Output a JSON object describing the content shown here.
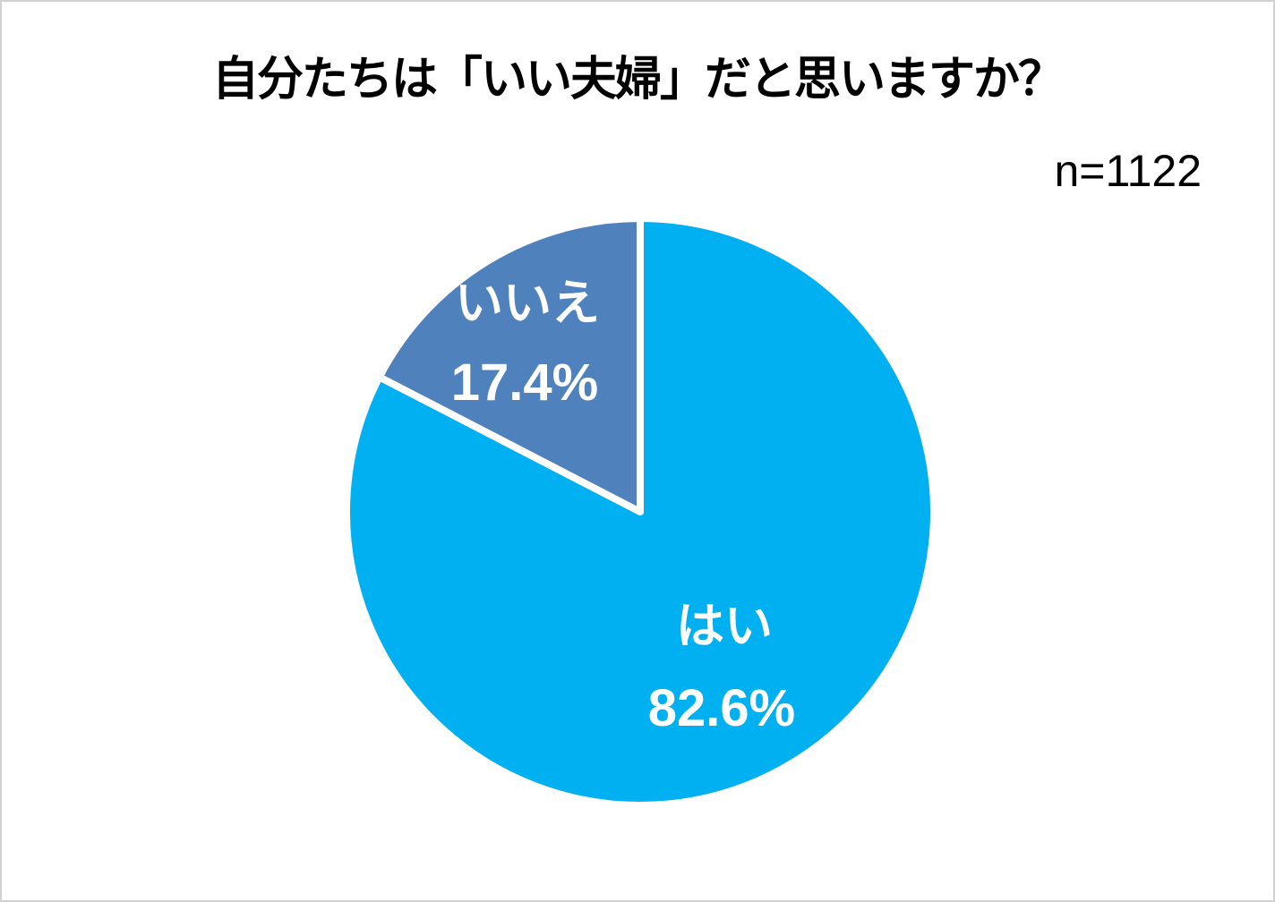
{
  "chart_data": {
    "type": "pie",
    "title": "自分たちは「いい夫婦」だと思いますか？",
    "sample_size_label": "n=1122",
    "start_angle_deg": 0,
    "direction": "clockwise",
    "legend": "none",
    "slice_border_color": "#ffffff",
    "label_text_color": "#ffffff",
    "title_color": "#000000",
    "background_color": "#ffffff",
    "slices": [
      {
        "label": "はい",
        "value": 82.6,
        "pct_label": "82.6%",
        "color": "#00b0f0"
      },
      {
        "label": "いいえ",
        "value": 17.4,
        "pct_label": "17.4%",
        "color": "#4f81bd"
      }
    ]
  }
}
